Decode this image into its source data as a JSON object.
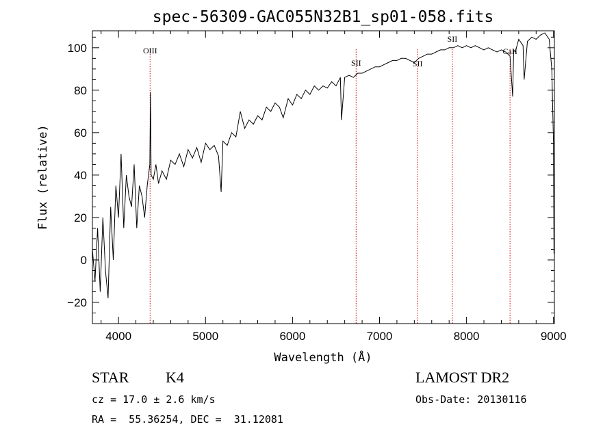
{
  "chart_data": {
    "type": "line",
    "title": "spec-56309-GAC055N32B1_sp01-058.fits",
    "xlabel": "Wavelength (Å)",
    "ylabel": "Flux (relative)",
    "xlim": [
      3700,
      9010
    ],
    "ylim": [
      -30,
      108
    ],
    "x_ticks": [
      "4000",
      "5000",
      "6000",
      "7000",
      "8000",
      "9000"
    ],
    "y_ticks": [
      "−20",
      "0",
      "20",
      "40",
      "60",
      "80",
      "100"
    ],
    "grid": false,
    "series": [
      {
        "x": [
          3700,
          3730,
          3760,
          3790,
          3820,
          3850,
          3880,
          3910,
          3940,
          3970,
          4000,
          4030,
          4060,
          4090,
          4120,
          4150,
          4180,
          4210,
          4240,
          4270,
          4300,
          4330,
          4360,
          4368,
          4375,
          4400,
          4430,
          4460,
          4500,
          4550,
          4600,
          4650,
          4700,
          4750,
          4800,
          4850,
          4900,
          4950,
          5000,
          5050,
          5100,
          5150,
          5180,
          5200,
          5250,
          5300,
          5350,
          5400,
          5450,
          5500,
          5550,
          5600,
          5650,
          5700,
          5750,
          5800,
          5850,
          5893,
          5950,
          6000,
          6050,
          6100,
          6150,
          6200,
          6250,
          6300,
          6350,
          6400,
          6450,
          6500,
          6550,
          6563,
          6600,
          6650,
          6700,
          6750,
          6800,
          6850,
          6900,
          6950,
          7000,
          7050,
          7100,
          7150,
          7200,
          7250,
          7300,
          7350,
          7400,
          7450,
          7500,
          7550,
          7600,
          7650,
          7700,
          7750,
          7800,
          7850,
          7900,
          7950,
          8000,
          8050,
          8100,
          8150,
          8200,
          8250,
          8300,
          8350,
          8400,
          8450,
          8500,
          8530,
          8542,
          8560,
          8600,
          8650,
          8662,
          8700,
          8750,
          8800,
          8850,
          8900,
          8950,
          8980,
          9000,
          9005
        ],
        "y": [
          5,
          -10,
          15,
          -15,
          20,
          -5,
          -18,
          25,
          0,
          35,
          20,
          50,
          15,
          40,
          30,
          25,
          45,
          15,
          35,
          30,
          20,
          35,
          45,
          79,
          40,
          38,
          45,
          36,
          42,
          38,
          47,
          45,
          50,
          44,
          52,
          48,
          53,
          46,
          55,
          52,
          54,
          49,
          32,
          56,
          54,
          60,
          58,
          70,
          62,
          66,
          64,
          68,
          66,
          72,
          70,
          74,
          72,
          67,
          76,
          73,
          78,
          76,
          80,
          78,
          82,
          80,
          82,
          81,
          84,
          82,
          86,
          66,
          86,
          87,
          86,
          88,
          88,
          89,
          90,
          91,
          91,
          92,
          93,
          94,
          94,
          95,
          95,
          94,
          93,
          95,
          96,
          97,
          97,
          98,
          99,
          99,
          100,
          100,
          101,
          100,
          101,
          100,
          101,
          100,
          99,
          100,
          99,
          98,
          99,
          98,
          96,
          77,
          99,
          98,
          104,
          101,
          85,
          103,
          105,
          104,
          106,
          107,
          104,
          90,
          55,
          3
        ]
      }
    ],
    "lines": [
      {
        "label": "OIII",
        "x": 4363
      },
      {
        "label": "SII",
        "x": 6731
      },
      {
        "label": "SII",
        "x": 7438
      },
      {
        "label": "SII",
        "x": 7837
      },
      {
        "label": "CaII",
        "x": 8500
      }
    ]
  },
  "info": {
    "class": "STAR",
    "subclass": "K4",
    "survey": "LAMOST DR2",
    "cz": "cz = 17.0 ± 2.6 km/s",
    "obsdate": "Obs-Date: 20130116",
    "radec": "RA =  55.36254, DEC =  31.12081"
  },
  "colors": {
    "spectrum": "#000000",
    "line_marker": "#cc0000"
  }
}
